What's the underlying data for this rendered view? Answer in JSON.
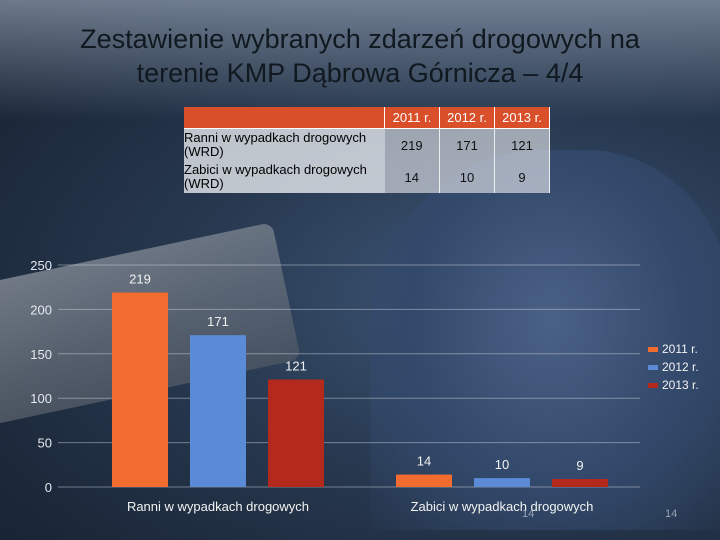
{
  "title_line1": "Zestawienie wybranych zdarzeń drogowych na",
  "title_line2": "terenie KMP Dąbrowa Górnicza – 4/4",
  "table": {
    "headers": [
      "2011 r.",
      "2012 r.",
      "2013 r."
    ],
    "rows": [
      {
        "label": "Ranni w wypadkach drogowych (WRD)",
        "values": [
          "219",
          "171",
          "121"
        ]
      },
      {
        "label": "Zabici w wypadkach drogowych  (WRD)",
        "values": [
          "14",
          "10",
          "9"
        ]
      }
    ]
  },
  "page_numbers": [
    "14",
    "14"
  ],
  "colors": {
    "s2011": "#f26b2f",
    "s2012": "#5b8bd6",
    "s2013": "#b32a1c",
    "header": "#d94f2a"
  },
  "chart_data": {
    "type": "bar",
    "categories": [
      "Ranni w wypadkach drogowych",
      "Zabici w wypadkach drogowych"
    ],
    "series": [
      {
        "name": "2011 r.",
        "values": [
          219,
          14
        ]
      },
      {
        "name": "2012 r.",
        "values": [
          171,
          10
        ]
      },
      {
        "name": "2013 r.",
        "values": [
          121,
          9
        ]
      }
    ],
    "yticks": [
      "0",
      "50",
      "100",
      "150",
      "200",
      "250"
    ],
    "ylim": [
      0,
      250
    ],
    "grid": true,
    "legend": "right"
  }
}
